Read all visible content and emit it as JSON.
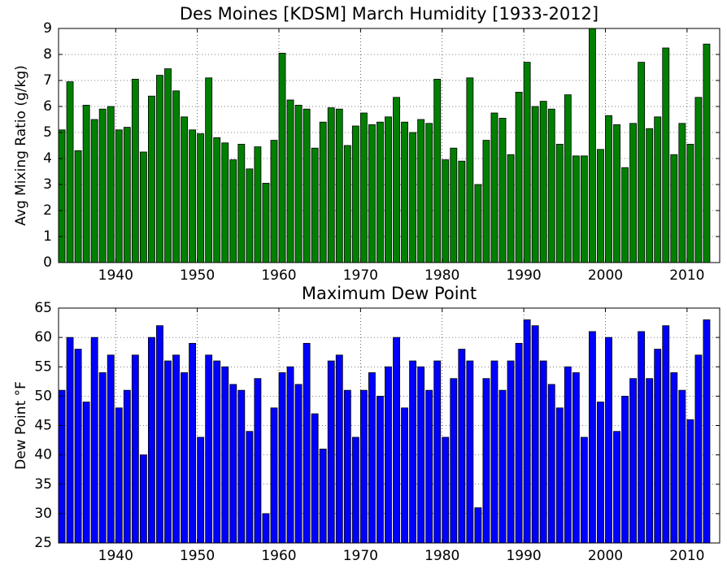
{
  "chart_data": [
    {
      "type": "bar",
      "title": "Des Moines [KDSM] March Humidity [1933-2012]",
      "ylabel": "Avg Mixing Ratio (g/kg)",
      "color": "#008000",
      "x": [
        1933,
        1934,
        1935,
        1936,
        1937,
        1938,
        1939,
        1940,
        1941,
        1942,
        1943,
        1944,
        1945,
        1946,
        1947,
        1948,
        1949,
        1950,
        1951,
        1952,
        1953,
        1954,
        1955,
        1956,
        1957,
        1958,
        1959,
        1960,
        1961,
        1962,
        1963,
        1964,
        1965,
        1966,
        1967,
        1968,
        1969,
        1970,
        1971,
        1972,
        1973,
        1974,
        1975,
        1976,
        1977,
        1978,
        1979,
        1980,
        1981,
        1982,
        1983,
        1984,
        1985,
        1986,
        1987,
        1988,
        1989,
        1990,
        1991,
        1992,
        1993,
        1994,
        1995,
        1996,
        1997,
        1998,
        1999,
        2000,
        2001,
        2002,
        2003,
        2004,
        2005,
        2006,
        2007,
        2008,
        2009,
        2010,
        2011,
        2012
      ],
      "values": [
        5.1,
        6.95,
        4.3,
        6.05,
        5.5,
        5.9,
        6.0,
        5.1,
        5.2,
        7.05,
        4.25,
        6.4,
        7.2,
        7.45,
        6.6,
        5.6,
        5.1,
        4.95,
        7.1,
        4.8,
        4.6,
        3.95,
        4.55,
        3.6,
        4.45,
        3.05,
        4.7,
        8.05,
        6.25,
        6.05,
        5.9,
        4.4,
        5.4,
        5.95,
        5.9,
        4.5,
        5.25,
        5.75,
        5.3,
        5.4,
        5.6,
        6.35,
        5.4,
        5.0,
        5.5,
        5.35,
        7.05,
        3.95,
        4.4,
        3.9,
        7.1,
        3.0,
        4.7,
        5.75,
        5.55,
        4.15,
        6.55,
        7.7,
        6.0,
        6.2,
        5.9,
        4.55,
        6.45,
        4.1,
        4.1,
        9.0,
        4.35,
        5.65,
        5.3,
        3.65,
        5.35,
        7.7,
        5.15,
        5.6,
        8.25,
        4.15,
        5.35,
        4.55,
        6.35,
        8.4
      ],
      "xlim": [
        1933,
        2014
      ],
      "xticks": [
        1940,
        1950,
        1960,
        1970,
        1980,
        1990,
        2000,
        2010
      ],
      "ylim": [
        0,
        9
      ],
      "yticks": [
        0,
        1,
        2,
        3,
        4,
        5,
        6,
        7,
        8,
        9
      ],
      "grid": true
    },
    {
      "type": "bar",
      "title": "Maximum Dew Point",
      "ylabel": "Dew Point °F",
      "color": "#0000ff",
      "x": [
        1933,
        1934,
        1935,
        1936,
        1937,
        1938,
        1939,
        1940,
        1941,
        1942,
        1943,
        1944,
        1945,
        1946,
        1947,
        1948,
        1949,
        1950,
        1951,
        1952,
        1953,
        1954,
        1955,
        1956,
        1957,
        1958,
        1959,
        1960,
        1961,
        1962,
        1963,
        1964,
        1965,
        1966,
        1967,
        1968,
        1969,
        1970,
        1971,
        1972,
        1973,
        1974,
        1975,
        1976,
        1977,
        1978,
        1979,
        1980,
        1981,
        1982,
        1983,
        1984,
        1985,
        1986,
        1987,
        1988,
        1989,
        1990,
        1991,
        1992,
        1993,
        1994,
        1995,
        1996,
        1997,
        1998,
        1999,
        2000,
        2001,
        2002,
        2003,
        2004,
        2005,
        2006,
        2007,
        2008,
        2009,
        2010,
        2011,
        2012
      ],
      "values": [
        51,
        60,
        58,
        49,
        60,
        54,
        57,
        48,
        51,
        57,
        40,
        60,
        62,
        56,
        57,
        54,
        59,
        43,
        57,
        56,
        55,
        52,
        51,
        44,
        53,
        30,
        48,
        54,
        55,
        52,
        59,
        47,
        41,
        56,
        57,
        51,
        43,
        51,
        54,
        50,
        55,
        60,
        48,
        56,
        55,
        51,
        56,
        43,
        53,
        58,
        56,
        31,
        53,
        56,
        51,
        56,
        59,
        63,
        62,
        56,
        52,
        48,
        55,
        54,
        43,
        61,
        49,
        60,
        44,
        50,
        53,
        61,
        53,
        58,
        62,
        54,
        51,
        46,
        57,
        63
      ],
      "xlim": [
        1933,
        2014
      ],
      "xticks": [
        1940,
        1950,
        1960,
        1970,
        1980,
        1990,
        2000,
        2010
      ],
      "ylim": [
        25,
        65
      ],
      "yticks": [
        25,
        30,
        35,
        40,
        45,
        50,
        55,
        60,
        65
      ],
      "grid": true
    }
  ]
}
